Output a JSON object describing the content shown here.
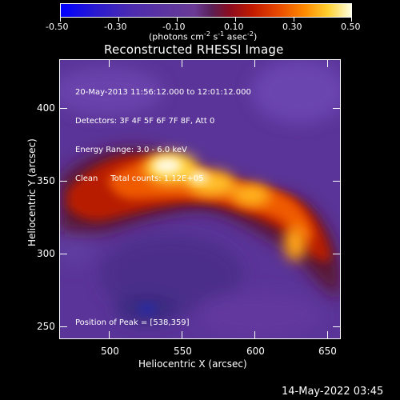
{
  "colorbar": {
    "ticks": [
      "-0.50",
      "-0.30",
      "-0.10",
      "0.10",
      "0.30",
      "0.50"
    ],
    "units_prefix": "(photons cm",
    "units_exp1": "-2",
    "units_mid1": " s",
    "units_exp2": "-1",
    "units_mid2": " asec",
    "units_exp3": "-2",
    "units_suffix": ")"
  },
  "plot": {
    "title": "Reconstructed RHESSI Image",
    "info_lines": [
      "20-May-2013 11:56:12.000 to 12:01:12.000",
      "Detectors: 3F 4F 5F 6F 7F 8F, Att 0",
      "Energy Range: 3.0 - 6.0 keV",
      "Clean     Total counts: 1.12E+05"
    ],
    "peak_text": "Position of Peak = [538,359]",
    "xlabel": "Heliocentric X (arcsec)",
    "ylabel": "Heliocentric Y (arcsec)",
    "xticks": [
      "500",
      "550",
      "600",
      "650"
    ],
    "yticks": [
      "400",
      "350",
      "300",
      "250"
    ]
  },
  "timestamp": "14-May-2022 03:45",
  "colors": {
    "background": "#000000",
    "text": "#ffffff",
    "colormap_low": "#0000ff",
    "colormap_zero": "#6a3fa0",
    "colormap_high": "#ffffff"
  }
}
